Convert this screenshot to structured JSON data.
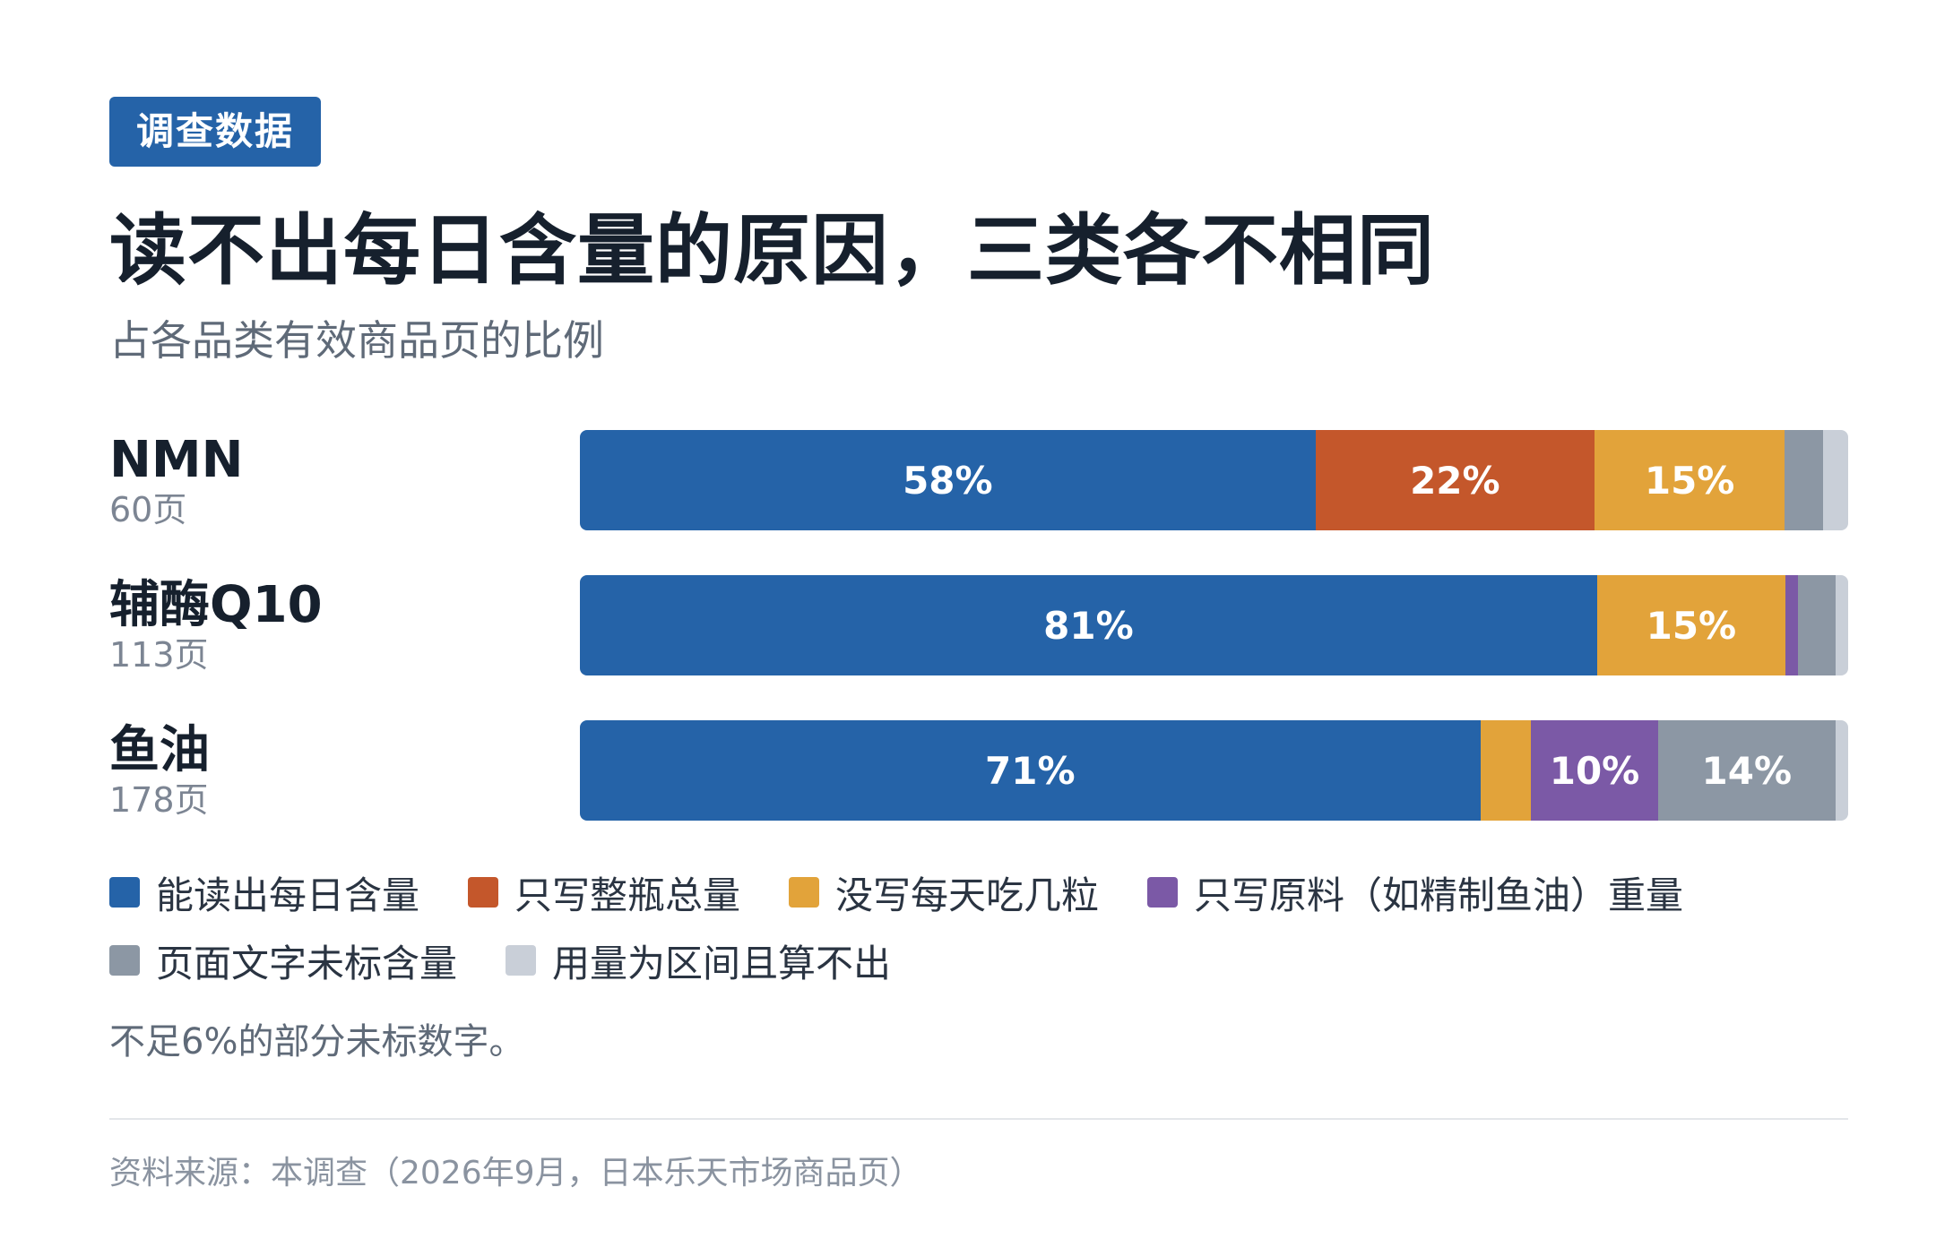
{
  "header": {
    "badge": "调查数据",
    "title": "读不出每日含量的原因，三类各不相同",
    "subtitle": "占各品类有效商品页的比例"
  },
  "chart_data": {
    "type": "bar",
    "orientation": "horizontal",
    "stacked": true,
    "normalized_to_percent": true,
    "categories": [
      "NMN",
      "辅酶Q10",
      "鱼油"
    ],
    "category_counts": [
      "60页",
      "113页",
      "178页"
    ],
    "series": [
      {
        "name": "能读出每日含量",
        "color": "#2563a8",
        "values": [
          58,
          81,
          71
        ]
      },
      {
        "name": "只写整瓶总量",
        "color": "#c4572b",
        "values": [
          22,
          0,
          0
        ]
      },
      {
        "name": "没写每天吃几粒",
        "color": "#e2a33a",
        "values": [
          15,
          15,
          4
        ]
      },
      {
        "name": "只写原料（如精制鱼油）重量",
        "color": "#7b59a6",
        "values": [
          0,
          1,
          10
        ]
      },
      {
        "name": "页面文字未标含量",
        "color": "#8c97a4",
        "values": [
          3,
          3,
          14
        ]
      },
      {
        "name": "用量为区间且算不出",
        "color": "#c9cfd8",
        "values": [
          2,
          1,
          1
        ]
      }
    ],
    "label_threshold": 6,
    "value_suffix": "%",
    "xlim": [
      0,
      100
    ]
  },
  "legend": {
    "rows": [
      [
        "能读出每日含量",
        "只写整瓶总量",
        "没写每天吃几粒",
        "只写原料（如精制鱼油）重量"
      ],
      [
        "页面文字未标含量",
        "用量为区间且算不出"
      ]
    ]
  },
  "note": "不足6%的部分未标数字。",
  "source": "资料来源：本调查（2026年9月，日本乐天市场商品页）"
}
